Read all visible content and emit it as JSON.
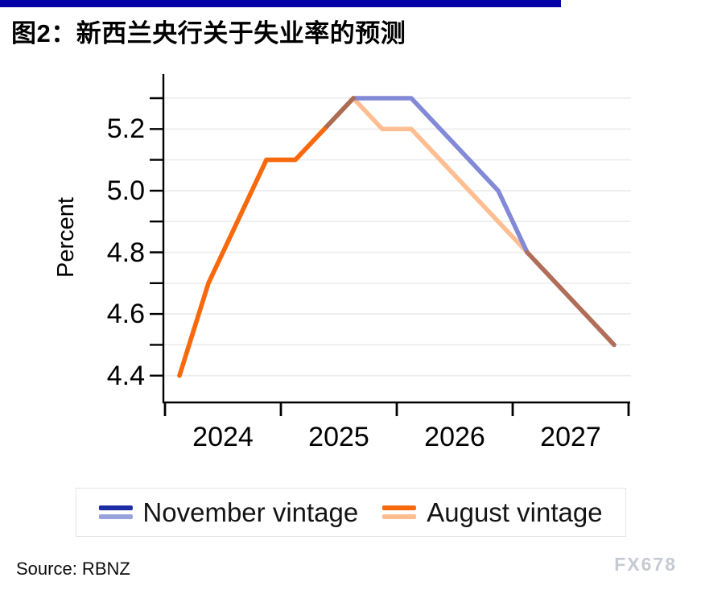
{
  "page": {
    "title": "图2：新西兰央行关于失业率的预测",
    "source": "Source: RBNZ",
    "watermark": "FX678"
  },
  "colors": {
    "accent_bar": "#0502a8",
    "november_dark": "#1d2ba5",
    "november_light": "#8289d6",
    "november_legend_light": "#98a1dc",
    "august_dark": "#f8690d",
    "august_light": "#ffbe92",
    "overlap_brown_rise": "#ac6b52",
    "overlap_brown_tail": "#b06e59",
    "gridline": "#ececec",
    "axis": "#000000",
    "legend_border": "#e4e4e4"
  },
  "legend": {
    "items": [
      {
        "label": "November vintage",
        "dark": "#1d2ba5",
        "light": "#98a1dc"
      },
      {
        "label": "August vintage",
        "dark": "#f8690d",
        "light": "#ffbe92"
      }
    ]
  },
  "chart_data": {
    "type": "line",
    "title": "图2：新西兰央行关于失业率的预测",
    "xlabel": "",
    "ylabel": "Percent",
    "xlim": [
      2024.0,
      2028.0
    ],
    "ylim": [
      4.31,
      5.38
    ],
    "grid": true,
    "grid_step": 0.1,
    "x_axis_ticks": [
      2024,
      2025,
      2026,
      2027,
      2028
    ],
    "x_tick_labels": [
      "2024",
      "2025",
      "2026",
      "2027"
    ],
    "x_tick_label_positions": [
      2024.5,
      2025.5,
      2026.5,
      2027.5
    ],
    "y_tick_min": 4.4,
    "y_tick_max": 5.3,
    "y_tick_step": 0.1,
    "y_labeled_ticks": [
      "5.2",
      "5.0",
      "4.8",
      "4.6",
      "4.4"
    ],
    "legend_position": "bottom-center",
    "x_unit": "quarterly (decimal years, quarter midpoints)",
    "series": [
      {
        "name": "November vintage",
        "points": [
          [
            2024.125,
            4.4
          ],
          [
            2024.375,
            4.7
          ],
          [
            2024.625,
            4.9
          ],
          [
            2024.875,
            5.1
          ],
          [
            2025.125,
            5.1
          ],
          [
            2025.375,
            5.2
          ],
          [
            2025.625,
            5.3
          ],
          [
            2025.875,
            5.3
          ],
          [
            2026.125,
            5.3
          ],
          [
            2026.375,
            5.2
          ],
          [
            2026.625,
            5.1
          ],
          [
            2026.875,
            5.0
          ],
          [
            2027.125,
            4.8
          ],
          [
            2027.375,
            4.7
          ],
          [
            2027.625,
            4.6
          ],
          [
            2027.875,
            4.5
          ]
        ]
      },
      {
        "name": "August vintage",
        "points": [
          [
            2024.125,
            4.4
          ],
          [
            2024.375,
            4.7
          ],
          [
            2024.625,
            4.9
          ],
          [
            2024.875,
            5.1
          ],
          [
            2025.125,
            5.1
          ],
          [
            2025.375,
            5.2
          ],
          [
            2025.625,
            5.3
          ],
          [
            2025.875,
            5.2
          ],
          [
            2026.125,
            5.2
          ],
          [
            2026.375,
            5.1
          ],
          [
            2026.625,
            5.0
          ],
          [
            2026.875,
            4.9
          ],
          [
            2027.125,
            4.8
          ],
          [
            2027.375,
            4.7
          ],
          [
            2027.625,
            4.6
          ],
          [
            2027.875,
            4.5
          ]
        ]
      }
    ],
    "render_segments": [
      {
        "series": 1,
        "from": 0,
        "to": 6,
        "color": "#ffbe92",
        "note": "august forecast light orange placeholder drawn under (hidden by dark rise)"
      },
      {
        "series": 1,
        "from": 6,
        "to": 12,
        "color": "#ffbe92",
        "note": "august vintage forecast decline, light orange"
      },
      {
        "series": 0,
        "from": 6,
        "to": 12,
        "color": "#8289d6",
        "note": "november vintage forecast, periwinkle blue"
      },
      {
        "series": 0,
        "from": 5,
        "to": 6,
        "color": "#ac6b52",
        "note": "overlapping rise 5.2->5.3, blended brown"
      },
      {
        "series": 1,
        "from": 12,
        "to": 15,
        "color": "#b06e59",
        "note": "overlapping tail 4.8->4.5, blended brown"
      },
      {
        "series": 1,
        "from": 0,
        "to": 5,
        "color": "#f8690d",
        "note": "shared actual/near-term path, vivid dark orange"
      }
    ]
  }
}
